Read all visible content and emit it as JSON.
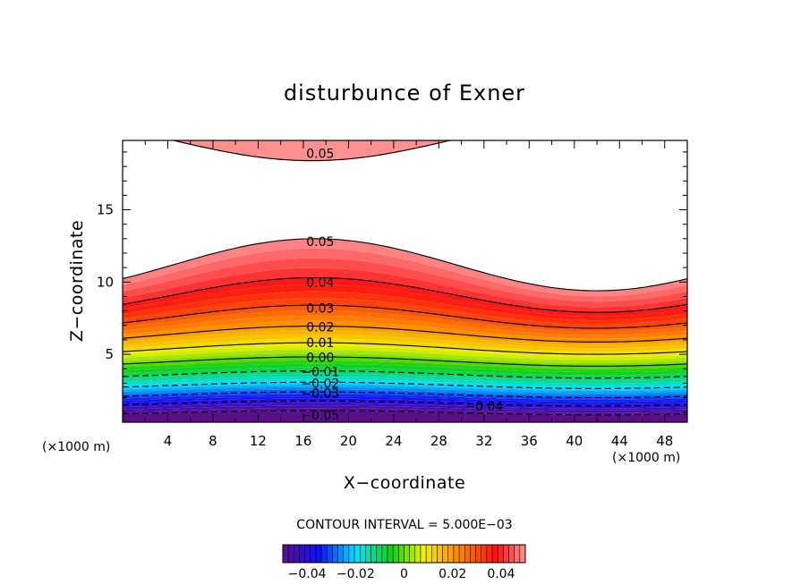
{
  "chart_data": {
    "type": "contour",
    "title": "disturbunce of Exner",
    "xlabel": "X−coordinate",
    "ylabel": "Z−coordinate",
    "x_unit_label": "(×1000 m)",
    "x_unit_label_right": "(×1000 m)",
    "xlim": [
      0,
      50
    ],
    "ylim": [
      0.3,
      19.8
    ],
    "x_ticks": [
      4,
      8,
      12,
      16,
      20,
      24,
      28,
      32,
      36,
      40,
      44,
      48
    ],
    "y_ticks": [
      5,
      10,
      15
    ],
    "contour_interval_text": "CONTOUR INTERVAL = 5.000E−03",
    "contour_interval": 0.005,
    "value_range": [
      -0.05,
      0.05
    ],
    "field_model": "lower contours follow z(x) = z_base + A * sin(2*pi*(x - 4.5)/50), amplitude largest near the top of the colored layer",
    "contour_lines": [
      {
        "level": 0.05,
        "z_base": 11.2,
        "amplitude": 1.8
      },
      {
        "level": 0.04,
        "z_base": 9.1,
        "amplitude": 1.2
      },
      {
        "level": 0.03,
        "z_base": 7.6,
        "amplitude": 0.8
      },
      {
        "level": 0.02,
        "z_base": 6.4,
        "amplitude": 0.55
      },
      {
        "level": 0.01,
        "z_base": 5.4,
        "amplitude": 0.4
      },
      {
        "level": 0.0,
        "z_base": 4.5,
        "amplitude": 0.32
      },
      {
        "level": -0.01,
        "z_base": 3.6,
        "amplitude": 0.25
      },
      {
        "level": -0.02,
        "z_base": 2.85,
        "amplitude": 0.22
      },
      {
        "level": -0.03,
        "z_base": 2.2,
        "amplitude": 0.2
      },
      {
        "level": -0.04,
        "z_base": 1.6,
        "amplitude": 0.18
      },
      {
        "level": -0.05,
        "z_base": 0.95,
        "amplitude": 0.15
      }
    ],
    "upper_contour": {
      "level": 0.05,
      "x_range": [
        4.5,
        29
      ],
      "z_min": 18.4
    },
    "contour_labels": [
      {
        "text": "0.05",
        "x": 17.5,
        "z": 18.9
      },
      {
        "text": "0.05",
        "x": 17.5,
        "z": 12.8
      },
      {
        "text": "0.04",
        "x": 17.5,
        "z": 10.0
      },
      {
        "text": "0.03",
        "x": 17.5,
        "z": 8.2
      },
      {
        "text": "0.02",
        "x": 17.5,
        "z": 6.9
      },
      {
        "text": "0.01",
        "x": 17.5,
        "z": 5.8
      },
      {
        "text": "0.00",
        "x": 17.5,
        "z": 4.8
      },
      {
        "text": "−0.01",
        "x": 17.5,
        "z": 3.8
      },
      {
        "text": "−0.02",
        "x": 17.5,
        "z": 3.0
      },
      {
        "text": "−0.03",
        "x": 17.5,
        "z": 2.3
      },
      {
        "text": "−0.04",
        "x": 32.0,
        "z": 1.4
      },
      {
        "text": "−0.05",
        "x": 17.5,
        "z": 0.8
      }
    ],
    "colorbar": {
      "ticks": [
        {
          "label": "−0.04",
          "value": -0.04
        },
        {
          "label": "−0.02",
          "value": -0.02
        },
        {
          "label": "0",
          "value": 0
        },
        {
          "label": "0.02",
          "value": 0.02
        },
        {
          "label": "0.04",
          "value": 0.04
        }
      ],
      "colormap": "rainbow"
    },
    "colors": {
      "low": "#5a0f8a",
      "blue": "#1010ff",
      "cyan": "#00e0ff",
      "green": "#10d010",
      "yellow": "#f0f000",
      "orange": "#ff8c00",
      "red": "#ff1010",
      "high": "#ff9090"
    },
    "grid": false
  }
}
